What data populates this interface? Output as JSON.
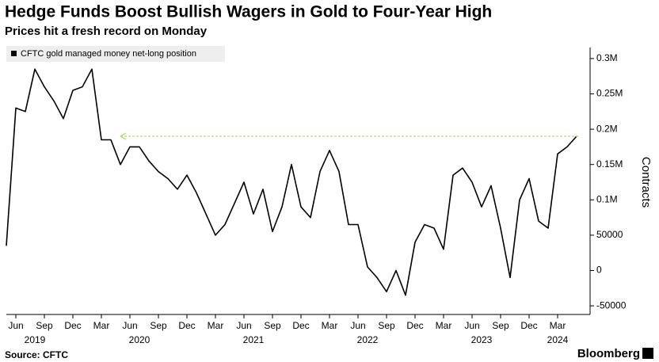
{
  "chart_data": {
    "type": "line",
    "title": "Hedge Funds Boost Bullish Wagers in Gold to Four-Year High",
    "subtitle": "Prices hit a fresh record on Monday",
    "source": "Source: CFTC",
    "brand": "Bloomberg",
    "ylabel": "Contracts",
    "x": [
      "2019-05",
      "2019-06",
      "2019-07",
      "2019-08",
      "2019-09",
      "2019-10",
      "2019-11",
      "2019-12",
      "2020-01",
      "2020-02",
      "2020-03",
      "2020-04",
      "2020-05",
      "2020-06",
      "2020-07",
      "2020-08",
      "2020-09",
      "2020-10",
      "2020-11",
      "2020-12",
      "2021-01",
      "2021-02",
      "2021-03",
      "2021-04",
      "2021-05",
      "2021-06",
      "2021-07",
      "2021-08",
      "2021-09",
      "2021-10",
      "2021-11",
      "2021-12",
      "2022-01",
      "2022-02",
      "2022-03",
      "2022-04",
      "2022-05",
      "2022-06",
      "2022-07",
      "2022-08",
      "2022-09",
      "2022-10",
      "2022-11",
      "2022-12",
      "2023-01",
      "2023-02",
      "2023-03",
      "2023-04",
      "2023-05",
      "2023-06",
      "2023-07",
      "2023-08",
      "2023-09",
      "2023-10",
      "2023-11",
      "2023-12",
      "2024-01",
      "2024-02",
      "2024-03",
      "2024-04",
      "2024-05"
    ],
    "series": [
      {
        "name": "CFTC gold managed money net-long position",
        "color": "#000000",
        "values": [
          35000,
          230000,
          225000,
          285000,
          260000,
          240000,
          215000,
          255000,
          260000,
          285000,
          185000,
          185000,
          150000,
          175000,
          175000,
          155000,
          140000,
          130000,
          115000,
          135000,
          110000,
          80000,
          50000,
          65000,
          95000,
          125000,
          80000,
          115000,
          55000,
          90000,
          150000,
          90000,
          75000,
          140000,
          170000,
          140000,
          65000,
          65000,
          5000,
          -10000,
          -30000,
          0,
          -35000,
          40000,
          65000,
          60000,
          30000,
          135000,
          145000,
          125000,
          90000,
          120000,
          60000,
          -10000,
          100000,
          130000,
          70000,
          60000,
          165000,
          175000,
          190000
        ]
      }
    ],
    "xlim": [
      "2019-05",
      "2024-05"
    ],
    "xticks": [
      {
        "value": "2019-06",
        "label": "Jun"
      },
      {
        "value": "2019-09",
        "label": "Sep"
      },
      {
        "value": "2019-12",
        "label": "Dec"
      },
      {
        "value": "2020-03",
        "label": "Mar"
      },
      {
        "value": "2020-06",
        "label": "Jun"
      },
      {
        "value": "2020-09",
        "label": "Sep"
      },
      {
        "value": "2020-12",
        "label": "Dec"
      },
      {
        "value": "2021-03",
        "label": "Mar"
      },
      {
        "value": "2021-06",
        "label": "Jun"
      },
      {
        "value": "2021-09",
        "label": "Sep"
      },
      {
        "value": "2021-12",
        "label": "Dec"
      },
      {
        "value": "2022-03",
        "label": "Mar"
      },
      {
        "value": "2022-06",
        "label": "Jun"
      },
      {
        "value": "2022-09",
        "label": "Sep"
      },
      {
        "value": "2022-12",
        "label": "Dec"
      },
      {
        "value": "2023-03",
        "label": "Mar"
      },
      {
        "value": "2023-06",
        "label": "Jun"
      },
      {
        "value": "2023-09",
        "label": "Sep"
      },
      {
        "value": "2023-12",
        "label": "Dec"
      },
      {
        "value": "2024-03",
        "label": "Mar"
      }
    ],
    "year_ticks": [
      {
        "value": "2019-08",
        "label": "2019"
      },
      {
        "value": "2020-07",
        "label": "2020"
      },
      {
        "value": "2021-07",
        "label": "2021"
      },
      {
        "value": "2022-07",
        "label": "2022"
      },
      {
        "value": "2023-07",
        "label": "2023"
      },
      {
        "value": "2024-03",
        "label": "2024"
      }
    ],
    "ylim": [
      -60000,
      310000
    ],
    "yticks": [
      -50000,
      0,
      50000,
      {
        "value": 100000,
        "label": "0.1M"
      },
      {
        "value": 150000,
        "label": "0.15M"
      },
      {
        "value": 200000,
        "label": "0.2M"
      },
      {
        "value": 250000,
        "label": "0.25M"
      },
      {
        "value": 300000,
        "label": "0.3M"
      }
    ],
    "grid": false,
    "legend": "top-left"
  }
}
